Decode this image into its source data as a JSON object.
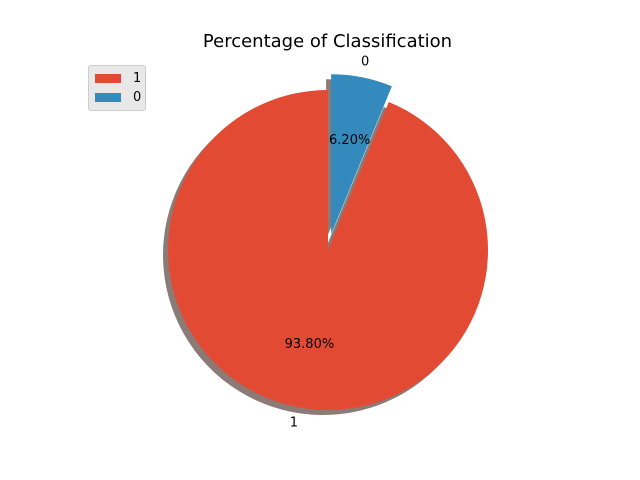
{
  "chart_data": {
    "type": "pie",
    "title": "Percentage of Classification",
    "slices": [
      {
        "label": "1",
        "value": 93.8,
        "pct_text": "93.80%",
        "color": "#E24A33",
        "exploded": false
      },
      {
        "label": "0",
        "value": 6.2,
        "pct_text": "6.20%",
        "color": "#348ABD",
        "exploded": true
      }
    ],
    "legend": {
      "placement": "upper-left",
      "entries": [
        {
          "label": "1",
          "color": "#E24A33"
        },
        {
          "label": "0",
          "color": "#348ABD"
        }
      ]
    },
    "shadow": true,
    "start_angle_deg": 90,
    "direction": "counterclockwise"
  }
}
